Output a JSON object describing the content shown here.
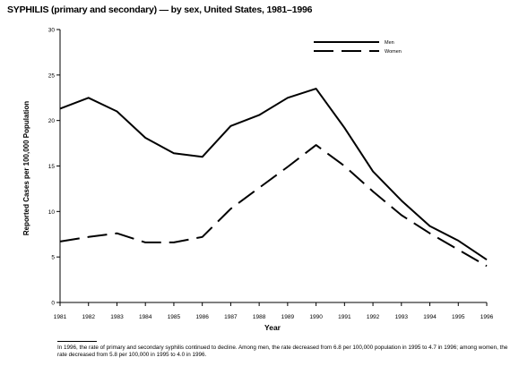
{
  "chart_data": {
    "type": "line",
    "title": "SYPHILIS (primary and secondary) — by sex, United States, 1981–1996",
    "xlabel": "Year",
    "ylabel": "Reported Cases per 100,000 Population",
    "ylim": [
      0,
      30
    ],
    "yticks": [
      "0",
      "5",
      "10",
      "15",
      "20",
      "25",
      "30"
    ],
    "x": [
      "1981",
      "1982",
      "1983",
      "1984",
      "1985",
      "1986",
      "1987",
      "1988",
      "1989",
      "1990",
      "1991",
      "1992",
      "1993",
      "1994",
      "1995",
      "1996"
    ],
    "series": [
      {
        "name": "Men",
        "style": "solid",
        "values": [
          21.3,
          22.5,
          21.0,
          18.1,
          16.4,
          16.0,
          19.4,
          20.6,
          22.5,
          23.5,
          19.2,
          14.4,
          11.2,
          8.4,
          6.8,
          4.7
        ]
      },
      {
        "name": "Women",
        "style": "dashed",
        "values": [
          6.7,
          7.2,
          7.6,
          6.6,
          6.6,
          7.2,
          10.3,
          12.6,
          14.9,
          17.3,
          15.0,
          12.2,
          9.6,
          7.6,
          5.8,
          4.0
        ]
      }
    ],
    "legend_position": "top-right",
    "grid": false,
    "footnote": "In 1996, the rate of primary and secondary syphilis continued to decline. Among men, the rate decreased from 6.8 per 100,000 population in 1995 to 4.7 in 1996; among women, the rate decreased from 5.8 per 100,000 in 1995 to 4.0 in 1996."
  }
}
